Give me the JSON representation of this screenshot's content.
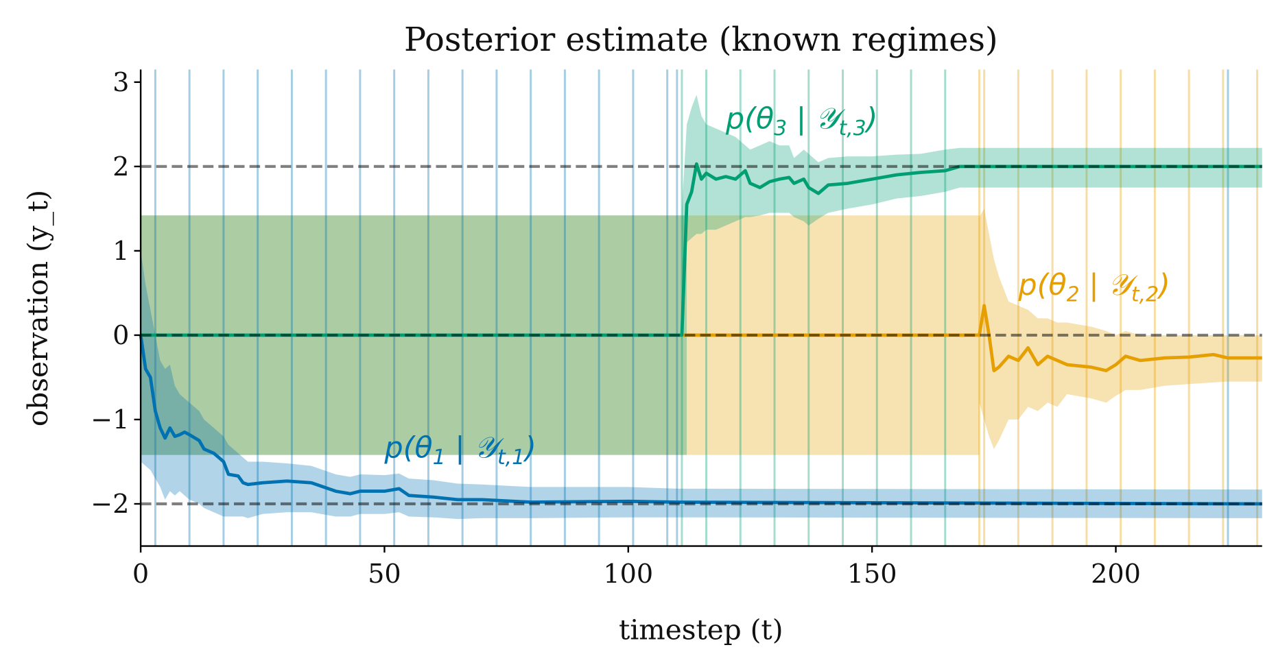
{
  "chart_data": {
    "type": "line",
    "title": "Posterior estimate (known regimes)",
    "xlabel": "timestep (t)",
    "ylabel": "observation (y_t)",
    "xlim": [
      0,
      230
    ],
    "ylim": [
      -2.5,
      3.15
    ],
    "xticks": [
      0,
      50,
      100,
      150,
      200
    ],
    "yticks": [
      -2,
      -1,
      0,
      1,
      2,
      3
    ],
    "ytick_labels": [
      "−2",
      "−1",
      "0",
      "1",
      "2",
      "3"
    ],
    "grid": false,
    "reference_lines": [
      -2,
      0,
      2
    ],
    "regime_changes": [
      111,
      172
    ],
    "prior_band": [
      -1.42,
      1.42
    ],
    "colors": {
      "regime1": "#0072B2",
      "regime2": "#E69F00",
      "regime3": "#009E73",
      "reference": "#555555"
    },
    "observation_lines": {
      "regime1": [
        3,
        10,
        17,
        24,
        31,
        38,
        45,
        52,
        59,
        66,
        73,
        80,
        87,
        94,
        101,
        108,
        110,
        223
      ],
      "regime3": [
        111,
        116,
        123,
        130,
        137,
        144,
        151,
        158,
        165
      ],
      "regime2": [
        172,
        173,
        180,
        187,
        194,
        201,
        208,
        215,
        222,
        229
      ]
    },
    "series": [
      {
        "name": "p(θ1 | 𝒴t,1)",
        "label_parts": {
          "pre": "p(θ",
          "sub1": "1",
          "mid": " | 𝒴",
          "sub2": "t,1",
          "post": ")"
        },
        "label_at": [
          50,
          -1.45
        ],
        "color": "#0072B2",
        "x": [
          0,
          1,
          2,
          3,
          4,
          5,
          6,
          7,
          8,
          9,
          10,
          12,
          13,
          15,
          17,
          18,
          20,
          21,
          22,
          25,
          30,
          35,
          40,
          43,
          45,
          50,
          53,
          55,
          60,
          65,
          70,
          80,
          100,
          110,
          230
        ],
        "y": [
          0,
          -0.4,
          -0.5,
          -0.9,
          -1.1,
          -1.22,
          -1.1,
          -1.2,
          -1.18,
          -1.15,
          -1.18,
          -1.25,
          -1.35,
          -1.4,
          -1.5,
          -1.65,
          -1.67,
          -1.75,
          -1.77,
          -1.75,
          -1.73,
          -1.75,
          -1.85,
          -1.88,
          -1.85,
          -1.85,
          -1.82,
          -1.9,
          -1.92,
          -1.95,
          -1.95,
          -1.98,
          -1.97,
          -1.98,
          -2.0
        ],
        "upper": [
          1.0,
          0.6,
          0.3,
          0.0,
          -0.3,
          -0.4,
          -0.35,
          -0.6,
          -0.7,
          -0.75,
          -0.8,
          -0.9,
          -1.0,
          -1.1,
          -1.2,
          -1.3,
          -1.4,
          -1.45,
          -1.5,
          -1.5,
          -1.52,
          -1.55,
          -1.65,
          -1.68,
          -1.65,
          -1.66,
          -1.64,
          -1.7,
          -1.72,
          -1.76,
          -1.77,
          -1.8,
          -1.8,
          -1.82,
          -1.83
        ],
        "lower": [
          -1.5,
          -1.55,
          -1.6,
          -1.7,
          -1.8,
          -1.95,
          -1.85,
          -1.9,
          -1.85,
          -1.9,
          -1.95,
          -2.0,
          -2.05,
          -2.1,
          -2.15,
          -2.15,
          -2.15,
          -2.15,
          -2.17,
          -2.12,
          -2.1,
          -2.1,
          -2.15,
          -2.15,
          -2.12,
          -2.12,
          -2.1,
          -2.15,
          -2.16,
          -2.18,
          -2.17,
          -2.17,
          -2.16,
          -2.16,
          -2.17
        ]
      },
      {
        "name": "p(θ2 | 𝒴t,2)",
        "label_parts": {
          "pre": "p(θ",
          "sub1": "2",
          "mid": " | 𝒴",
          "sub2": "t,2",
          "post": ")"
        },
        "label_at": [
          180,
          0.48
        ],
        "color": "#E69F00",
        "x": [
          172,
          173,
          174,
          175,
          176,
          178,
          180,
          182,
          184,
          186,
          188,
          190,
          195,
          198,
          200,
          202,
          205,
          210,
          215,
          220,
          223,
          230
        ],
        "y": [
          0,
          0.35,
          0.0,
          -0.42,
          -0.38,
          -0.25,
          -0.3,
          -0.15,
          -0.35,
          -0.25,
          -0.3,
          -0.35,
          -0.38,
          -0.42,
          -0.35,
          -0.25,
          -0.3,
          -0.27,
          -0.26,
          -0.23,
          -0.27,
          -0.27
        ],
        "upper": [
          1.4,
          1.5,
          1.2,
          0.9,
          0.7,
          0.4,
          0.35,
          0.3,
          0.2,
          0.2,
          0.15,
          0.15,
          0.1,
          0.05,
          0.0,
          0.05,
          0.0,
          0.0,
          0.0,
          0.0,
          0.0,
          0.0
        ],
        "lower": [
          -0.8,
          -1.0,
          -1.2,
          -1.35,
          -1.25,
          -1.0,
          -1.0,
          -0.85,
          -0.9,
          -0.8,
          -0.85,
          -0.7,
          -0.75,
          -0.8,
          -0.72,
          -0.65,
          -0.65,
          -0.6,
          -0.58,
          -0.56,
          -0.55,
          -0.55
        ]
      },
      {
        "name": "p(θ3 | 𝒴t,3)",
        "label_parts": {
          "pre": "p(θ",
          "sub1": "3",
          "mid": " | 𝒴",
          "sub2": "t,3",
          "post": ")"
        },
        "label_at": [
          120,
          2.45
        ],
        "color": "#009E73",
        "x": [
          111,
          112,
          113,
          114,
          115,
          116,
          118,
          120,
          122,
          124,
          125,
          127,
          129,
          131,
          133,
          134,
          136,
          137,
          139,
          141,
          145,
          150,
          155,
          160,
          165,
          168,
          230
        ],
        "y": [
          0,
          1.55,
          1.7,
          2.03,
          1.85,
          1.92,
          1.85,
          1.88,
          1.85,
          1.95,
          1.8,
          1.75,
          1.82,
          1.85,
          1.87,
          1.8,
          1.85,
          1.75,
          1.68,
          1.78,
          1.8,
          1.85,
          1.9,
          1.93,
          1.95,
          2.0,
          2.0
        ],
        "upper": [
          1.5,
          2.5,
          2.7,
          2.85,
          2.6,
          2.5,
          2.45,
          2.4,
          2.35,
          2.25,
          2.2,
          2.25,
          2.3,
          2.25,
          2.25,
          2.1,
          2.2,
          2.15,
          2.05,
          2.1,
          2.12,
          2.12,
          2.14,
          2.15,
          2.2,
          2.22,
          2.22
        ],
        "lower": [
          0,
          1.1,
          1.15,
          1.2,
          1.2,
          1.25,
          1.25,
          1.3,
          1.35,
          1.4,
          1.4,
          1.42,
          1.45,
          1.45,
          1.45,
          1.4,
          1.35,
          1.3,
          1.38,
          1.45,
          1.5,
          1.55,
          1.62,
          1.65,
          1.7,
          1.75,
          1.75
        ]
      }
    ]
  }
}
